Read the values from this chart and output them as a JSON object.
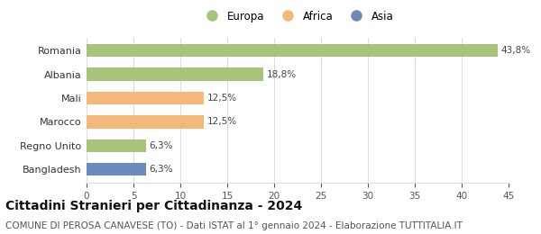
{
  "categories": [
    "Bangladesh",
    "Regno Unito",
    "Marocco",
    "Mali",
    "Albania",
    "Romania"
  ],
  "values": [
    6.3,
    6.3,
    12.5,
    12.5,
    18.8,
    43.8
  ],
  "labels": [
    "6,3%",
    "6,3%",
    "12,5%",
    "12,5%",
    "18,8%",
    "43,8%"
  ],
  "colors": [
    "#6b8cba",
    "#a8c47a",
    "#f4b97a",
    "#f4b97a",
    "#a8c47a",
    "#a8c47a"
  ],
  "legend": [
    {
      "label": "Europa",
      "color": "#a8c47a"
    },
    {
      "label": "Africa",
      "color": "#f4b97a"
    },
    {
      "label": "Asia",
      "color": "#6b8cba"
    }
  ],
  "xlim": [
    0,
    45
  ],
  "xticks": [
    0,
    5,
    10,
    15,
    20,
    25,
    30,
    35,
    40,
    45
  ],
  "title": "Cittadini Stranieri per Cittadinanza - 2024",
  "subtitle": "COMUNE DI PEROSA CANAVESE (TO) - Dati ISTAT al 1° gennaio 2024 - Elaborazione TUTTITALIA.IT",
  "title_fontsize": 10,
  "subtitle_fontsize": 7.5,
  "bar_height": 0.55,
  "background_color": "#ffffff",
  "grid_color": "#dddddd"
}
